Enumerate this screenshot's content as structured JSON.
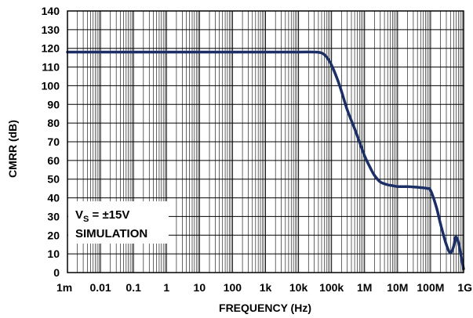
{
  "chart_data": {
    "type": "line",
    "title": "",
    "xlabel": "FREQUENCY (Hz)",
    "ylabel": "CMRR (dB)",
    "x_scale": "log",
    "xlim": [
      0.001,
      1000000000
    ],
    "ylim": [
      0,
      140
    ],
    "grid": true,
    "x_tick_labels": [
      "1m",
      "0.01",
      "0.1",
      "1",
      "10",
      "100",
      "1k",
      "10k",
      "100k",
      "1M",
      "10M",
      "100M",
      "1G"
    ],
    "x_tick_values": [
      0.001,
      0.01,
      0.1,
      1,
      10,
      100,
      1000,
      10000,
      100000,
      1000000,
      10000000,
      100000000,
      1000000000
    ],
    "y_tick_labels": [
      "0",
      "10",
      "20",
      "30",
      "40",
      "50",
      "60",
      "70",
      "80",
      "90",
      "100",
      "110",
      "120",
      "130",
      "140"
    ],
    "y_tick_values": [
      0,
      10,
      20,
      30,
      40,
      50,
      60,
      70,
      80,
      90,
      100,
      110,
      120,
      130,
      140
    ],
    "annotation": {
      "vs_prefix": "V",
      "vs_sub": "S",
      "vs_suffix": " = ±15V",
      "line2": "SIMULATION"
    },
    "series": [
      {
        "color": "#1b2f66",
        "x": [
          0.001,
          0.01,
          0.1,
          1,
          10,
          100,
          1000,
          10000,
          30000,
          50000,
          70000,
          100000,
          150000,
          200000,
          300000,
          500000,
          700000,
          1000000,
          1500000,
          2000000,
          3000000,
          5000000,
          7000000,
          10000000,
          20000000,
          50000000,
          80000000,
          100000000,
          150000000,
          200000000,
          300000000,
          400000000,
          500000000,
          550000000,
          600000000,
          700000000,
          800000000,
          900000000,
          1000000000
        ],
        "y": [
          118,
          118,
          118,
          118,
          118,
          118,
          118,
          118,
          118,
          117.5,
          115.5,
          111,
          103.5,
          97,
          87,
          77,
          70,
          62.5,
          56,
          52,
          48.5,
          47,
          46.5,
          46,
          46,
          45.5,
          45,
          44,
          35,
          26,
          15,
          10.5,
          14,
          18,
          19,
          16,
          11,
          6,
          2
        ]
      }
    ]
  }
}
